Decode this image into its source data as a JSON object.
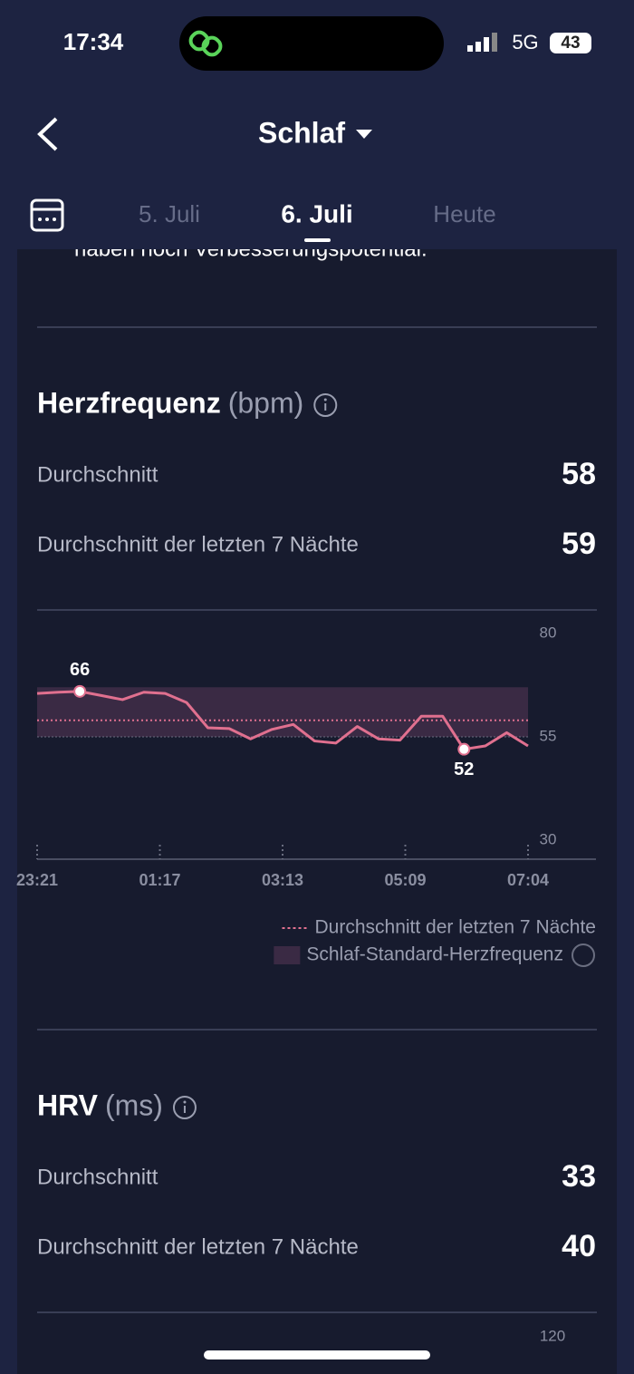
{
  "status_bar": {
    "time": "17:34",
    "network": "5G",
    "battery": "43"
  },
  "header": {
    "title": "Schlaf"
  },
  "tabs": [
    "5. Juli",
    "6. Juli",
    "Heute"
  ],
  "cut_text": "haben noch Verbesserungspotential.",
  "heart_rate": {
    "title": "Herzfrequenz",
    "unit": "(bpm)",
    "rows": [
      {
        "label": "Durchschnitt",
        "value": 58
      },
      {
        "label": "Durchschnitt der letzten 7 Nächte",
        "value": 59
      }
    ],
    "chart": {
      "type": "line",
      "x_labels": [
        "23:21",
        "01:17",
        "03:13",
        "05:09",
        "07:04"
      ],
      "values": [
        65.5,
        65.8,
        66,
        65,
        64,
        65.8,
        65.5,
        63.3,
        57.2,
        57,
        54.5,
        56.8,
        58,
        54,
        53.5,
        57.5,
        54.5,
        54.2,
        60,
        60,
        52,
        52.8,
        56,
        52.8
      ],
      "color": "#e0708f",
      "ylim": [
        30,
        80
      ],
      "yticks": [
        30,
        55,
        80
      ],
      "standard_range": [
        55,
        67
      ],
      "max_label": "66",
      "min_label": "52",
      "legend": [
        "Durchschnitt der letzten 7 Nächte",
        "Schlaf-Standard-Herzfrequenz"
      ]
    }
  },
  "hrv": {
    "title": "HRV",
    "unit": "(ms)",
    "rows": [
      {
        "label": "Durchschnitt",
        "value": 33
      },
      {
        "label": "Durchschnitt der letzten 7 Nächte",
        "value": 40
      }
    ],
    "chart": {
      "yticks": [
        120
      ]
    }
  }
}
